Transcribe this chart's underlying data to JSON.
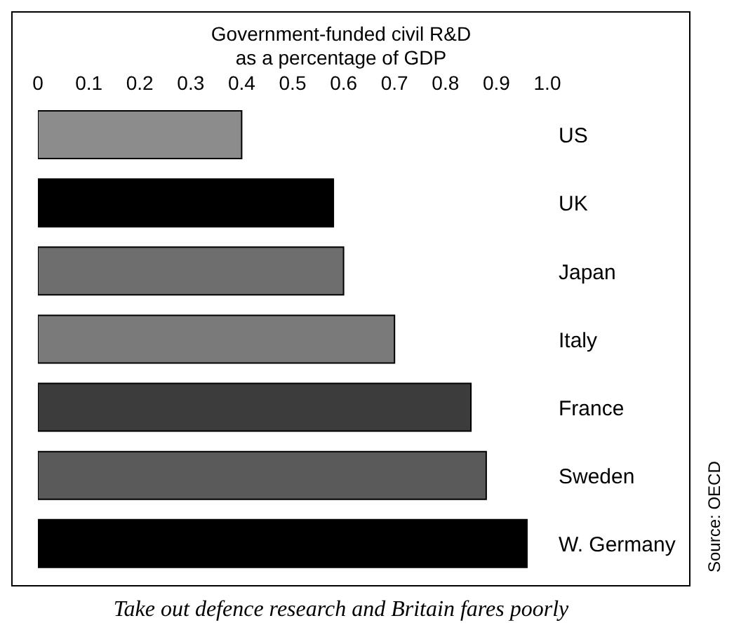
{
  "chart_data": {
    "type": "bar",
    "orientation": "horizontal",
    "title": "Government-funded civil R&D\nas a percentage of GDP",
    "categories": [
      "US",
      "UK",
      "Japan",
      "Italy",
      "France",
      "Sweden",
      "W. Germany"
    ],
    "values": [
      0.4,
      0.58,
      0.6,
      0.7,
      0.85,
      0.88,
      0.96
    ],
    "colors": [
      "#8c8c8c",
      "#000000",
      "#6e6e6e",
      "#7a7a7a",
      "#3c3c3c",
      "#5a5a5a",
      "#000000"
    ],
    "xlim": [
      0,
      1
    ],
    "xticks": [
      0,
      0.1,
      0.2,
      0.3,
      0.4,
      0.5,
      0.6,
      0.7,
      0.8,
      0.9,
      {
        "value": 1,
        "label": "1.0"
      }
    ],
    "grid": false,
    "annotations": [
      "Source: OECD",
      "Take out defence research and Britain fares poorly"
    ]
  }
}
